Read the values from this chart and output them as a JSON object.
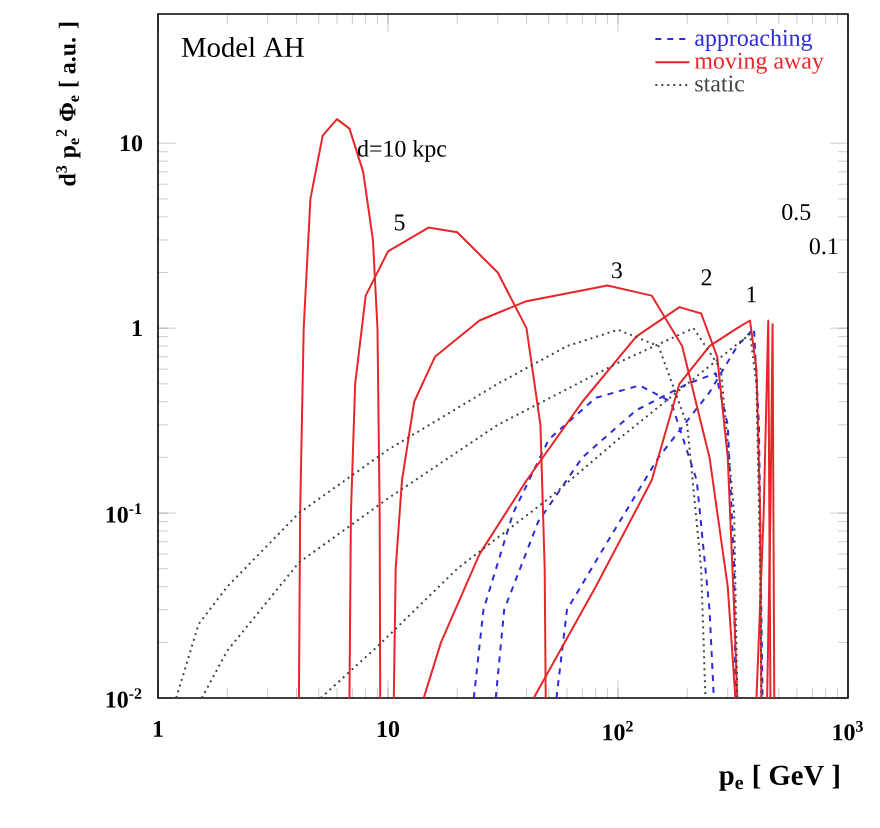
{
  "chart_data": {
    "type": "line",
    "xlabel": "p$_{e}$ [ GeV ]",
    "ylabel": "d$^{3}$ p$_{e}$$^{2}$ Φ$_{e}$  [ a.u. ]",
    "log": "xy",
    "grid": false,
    "legend": "top right",
    "marker": "none",
    "xlim": [
      1,
      1000
    ],
    "ylim": [
      0.01,
      50
    ],
    "xticks": [
      1,
      10,
      {
        "value": 100,
        "label": "10$^{2}$"
      },
      {
        "value": 1000,
        "label": "10$^{3}$"
      }
    ],
    "yticks": [
      {
        "value": 0.01,
        "label": "10$^{-2}$"
      },
      {
        "value": 0.1,
        "label": "10$^{-1}$"
      },
      1,
      10
    ],
    "series": [
      {
        "name": "approaching",
        "color": "#2b2bd9",
        "line_style": "dashed",
        "x": [
          23.6,
          26,
          35,
          50,
          80,
          124,
          170,
          220,
          250,
          261
        ],
        "values": [
          0.01,
          0.03,
          0.1,
          0.25,
          0.42,
          0.49,
          0.4,
          0.15,
          0.03,
          0.01
        ]
      },
      {
        "color": "#2b2bd9",
        "line_style": "dashed",
        "x": [
          29.4,
          32,
          45,
          70,
          120,
          200,
          266,
          300,
          320,
          324
        ],
        "values": [
          0.01,
          0.03,
          0.09,
          0.2,
          0.36,
          0.5,
          0.57,
          0.3,
          0.05,
          0.01
        ]
      },
      {
        "color": "#2b2bd9",
        "line_style": "dashed",
        "x": [
          54,
          60,
          90,
          150,
          250,
          330,
          390,
          410,
          420,
          425
        ],
        "values": [
          0.01,
          0.03,
          0.07,
          0.2,
          0.45,
          0.8,
          1.0,
          0.3,
          0.03,
          0.01
        ]
      },
      {
        "name": "moving away",
        "color": "#e8262a",
        "line_style": "solid",
        "x": [
          4.1,
          4.15,
          4.3,
          4.6,
          5.2,
          6,
          6.8,
          7.8,
          8.6,
          9.0,
          9.2,
          9.25
        ],
        "values": [
          0.01,
          0.1,
          1,
          5,
          11,
          13.5,
          12,
          7,
          3,
          1,
          0.1,
          0.01
        ]
      },
      {
        "color": "#e8262a",
        "line_style": "solid",
        "x": [
          6.8,
          6.9,
          7.2,
          8,
          10,
          15,
          20,
          30,
          40,
          46,
          48,
          48.5
        ],
        "values": [
          0.01,
          0.1,
          0.5,
          1.5,
          2.6,
          3.5,
          3.3,
          2,
          1,
          0.3,
          0.05,
          0.01
        ]
      },
      {
        "color": "#e8262a",
        "line_style": "solid",
        "x": [
          10.6,
          10.8,
          11.5,
          13,
          16,
          25,
          40,
          90,
          140,
          190,
          250,
          300,
          324
        ],
        "values": [
          0.01,
          0.05,
          0.15,
          0.4,
          0.7,
          1.1,
          1.4,
          1.7,
          1.5,
          0.8,
          0.2,
          0.04,
          0.01
        ]
      },
      {
        "color": "#e8262a",
        "line_style": "solid",
        "x": [
          14.3,
          17,
          25,
          40,
          70,
          120,
          185,
          230,
          270,
          300,
          320,
          330
        ],
        "values": [
          0.01,
          0.02,
          0.06,
          0.15,
          0.4,
          0.9,
          1.3,
          1.2,
          0.7,
          0.2,
          0.03,
          0.01
        ]
      },
      {
        "color": "#e8262a",
        "line_style": "solid",
        "x": [
          43,
          80,
          140,
          185,
          250,
          330,
          375,
          400,
          415,
          420
        ],
        "values": [
          0.01,
          0.04,
          0.15,
          0.5,
          0.8,
          1.0,
          1.1,
          0.6,
          0.1,
          0.01
        ]
      },
      {
        "color": "#e8262a",
        "line_style": "solid",
        "x": [
          400,
          430,
          450,
          455,
          460
        ],
        "values": [
          0.01,
          0.1,
          1.1,
          0.1,
          0.01
        ]
      },
      {
        "color": "#e8262a",
        "line_style": "solid",
        "x": [
          445,
          460,
          470,
          474,
          478
        ],
        "values": [
          0.01,
          0.1,
          1.05,
          0.1,
          0.01
        ]
      },
      {
        "name": "static",
        "color": "#444444",
        "line_style": "dotted",
        "x": [
          1.2,
          1.5,
          2,
          4.1,
          10,
          30,
          60,
          100,
          150,
          200,
          230,
          240
        ],
        "values": [
          0.01,
          0.025,
          0.04,
          0.1,
          0.22,
          0.5,
          0.8,
          0.98,
          0.8,
          0.3,
          0.05,
          0.01
        ]
      },
      {
        "color": "#444444",
        "line_style": "dotted",
        "x": [
          1.55,
          2,
          4.1,
          10,
          30,
          100,
          213,
          280,
          320,
          330
        ],
        "values": [
          0.01,
          0.018,
          0.054,
          0.12,
          0.3,
          0.65,
          1.0,
          0.6,
          0.1,
          0.01
        ]
      },
      {
        "color": "#444444",
        "line_style": "dotted",
        "x": [
          5.1,
          9.2,
          20,
          50,
          100,
          200,
          375,
          400,
          415,
          420
        ],
        "values": [
          0.01,
          0.0195,
          0.05,
          0.12,
          0.25,
          0.5,
          0.93,
          0.5,
          0.05,
          0.01
        ]
      }
    ],
    "annotations": [
      "Model AH",
      "d=10 kpc",
      "5",
      "3",
      "2",
      "1",
      "0.5",
      "0.1"
    ]
  }
}
